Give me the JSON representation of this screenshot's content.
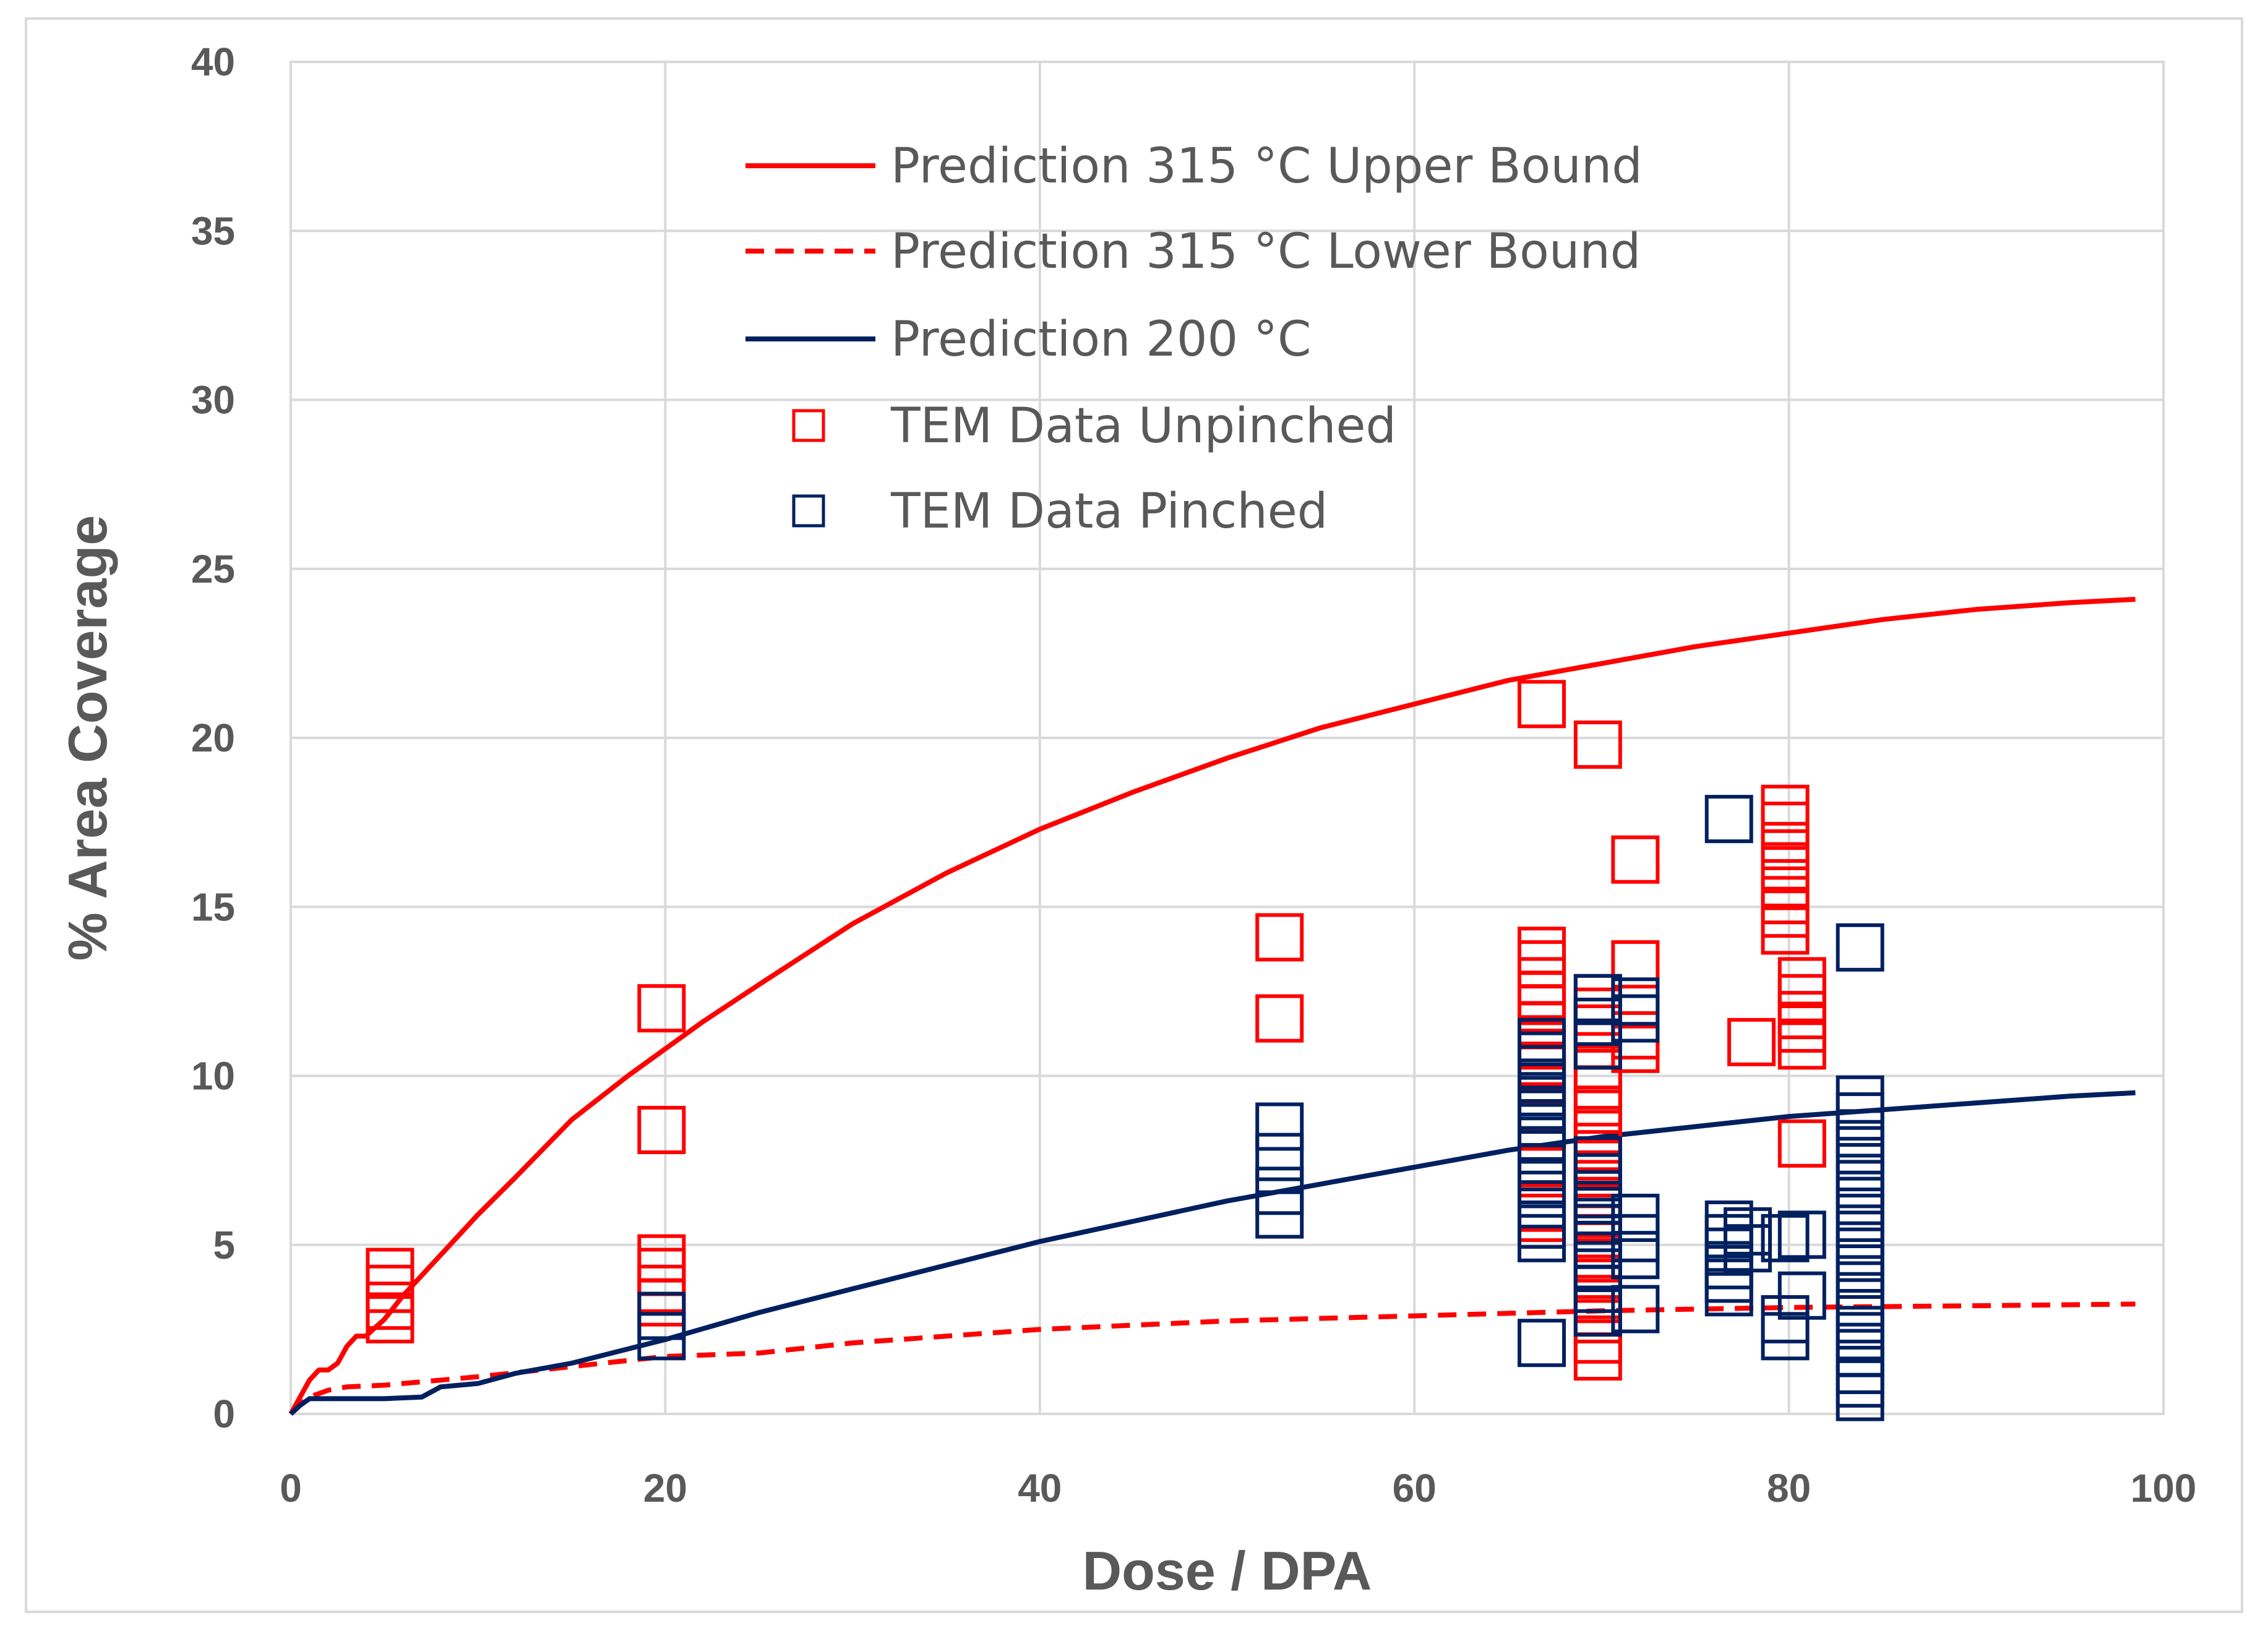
{
  "chart_data": {
    "type": "scatter",
    "title": "",
    "xlabel": "Dose / DPA",
    "ylabel": "% Area Coverage",
    "xlim": [
      0,
      100
    ],
    "ylim": [
      0,
      40
    ],
    "xticks": [
      0,
      20,
      40,
      60,
      80,
      100
    ],
    "yticks": [
      0,
      5,
      10,
      15,
      20,
      25,
      30,
      35,
      40
    ],
    "grid": true,
    "legend_position": "top-center",
    "colors": {
      "red": "#ff0000",
      "navy": "#002060",
      "grid": "#d9d9d9",
      "text": "#595959"
    },
    "series": [
      {
        "name": "Prediction 315 °C Upper Bound",
        "kind": "line",
        "style": "solid",
        "color": "#ff0000",
        "x": [
          0,
          0.5,
          1,
          1.5,
          2,
          2.5,
          3,
          3.5,
          4,
          5,
          6,
          8,
          10,
          12,
          15,
          18,
          20,
          22,
          25,
          30,
          35,
          40,
          45,
          50,
          55,
          60,
          65,
          70,
          75,
          80,
          85,
          90,
          95,
          98.5
        ],
        "y": [
          0,
          0.5,
          1.0,
          1.3,
          1.3,
          1.5,
          2.0,
          2.3,
          2.3,
          2.8,
          3.5,
          4.7,
          5.9,
          7.0,
          8.7,
          10.0,
          10.8,
          11.6,
          12.7,
          14.5,
          16.0,
          17.3,
          18.4,
          19.4,
          20.3,
          21.0,
          21.7,
          22.2,
          22.7,
          23.1,
          23.5,
          23.8,
          24.0,
          24.1
        ]
      },
      {
        "name": "Prediction 315 °C Lower Bound",
        "kind": "line",
        "style": "dashed",
        "color": "#ff0000",
        "x": [
          0,
          0.5,
          1,
          2,
          3,
          5,
          10,
          15,
          20,
          25,
          30,
          35,
          40,
          50,
          60,
          70,
          80,
          90,
          98.5
        ],
        "y": [
          0,
          0.3,
          0.5,
          0.7,
          0.8,
          0.85,
          1.1,
          1.4,
          1.7,
          1.8,
          2.1,
          2.3,
          2.5,
          2.75,
          2.9,
          3.05,
          3.15,
          3.2,
          3.25
        ]
      },
      {
        "name": "Prediction 200 °C",
        "kind": "line",
        "style": "solid",
        "color": "#002060",
        "x": [
          0,
          0.5,
          1,
          2,
          3,
          5,
          7,
          8,
          10,
          12,
          15,
          20,
          25,
          30,
          35,
          40,
          45,
          50,
          55,
          60,
          65,
          70,
          75,
          80,
          85,
          90,
          95,
          98.5
        ],
        "y": [
          0,
          0.25,
          0.45,
          0.45,
          0.45,
          0.45,
          0.5,
          0.8,
          0.9,
          1.2,
          1.5,
          2.2,
          3.0,
          3.7,
          4.4,
          5.1,
          5.7,
          6.3,
          6.8,
          7.3,
          7.8,
          8.2,
          8.5,
          8.8,
          9.0,
          9.2,
          9.4,
          9.5
        ]
      },
      {
        "name": "TEM Data Unpinched",
        "kind": "marker",
        "marker": "square",
        "color": "#ff0000",
        "points": [
          [
            5.3,
            4.2
          ],
          [
            5.3,
            3.7
          ],
          [
            5.3,
            3.2
          ],
          [
            5.3,
            2.8
          ],
          [
            19.8,
            12.0
          ],
          [
            19.8,
            8.4
          ],
          [
            19.8,
            4.6
          ],
          [
            19.8,
            4.2
          ],
          [
            19.8,
            3.7
          ],
          [
            19.8,
            3.3
          ],
          [
            52.8,
            14.1
          ],
          [
            52.8,
            11.7
          ],
          [
            66.8,
            21.0
          ],
          [
            66.8,
            13.7
          ],
          [
            66.8,
            13.3
          ],
          [
            66.8,
            12.8
          ],
          [
            66.8,
            12.4
          ],
          [
            66.8,
            12.0
          ],
          [
            66.8,
            11.5
          ],
          [
            66.8,
            10.9
          ],
          [
            66.8,
            10.3
          ],
          [
            66.8,
            9.8
          ],
          [
            66.8,
            9.1
          ],
          [
            66.8,
            8.5
          ],
          [
            66.8,
            6.1
          ],
          [
            66.8,
            5.8
          ],
          [
            69.8,
            19.8
          ],
          [
            69.8,
            12.3
          ],
          [
            69.8,
            11.9
          ],
          [
            69.8,
            11.4
          ],
          [
            69.8,
            10.9
          ],
          [
            69.8,
            10.2
          ],
          [
            69.8,
            9.6
          ],
          [
            69.8,
            9.0
          ],
          [
            69.8,
            8.4
          ],
          [
            69.8,
            7.9
          ],
          [
            69.8,
            7.4
          ],
          [
            69.8,
            6.8
          ],
          [
            69.8,
            6.3
          ],
          [
            69.8,
            5.8
          ],
          [
            69.8,
            5.2
          ],
          [
            69.8,
            4.6
          ],
          [
            69.8,
            4.0
          ],
          [
            69.8,
            3.4
          ],
          [
            69.8,
            2.8
          ],
          [
            69.8,
            2.2
          ],
          [
            69.8,
            1.7
          ],
          [
            71.8,
            16.4
          ],
          [
            71.8,
            13.3
          ],
          [
            71.8,
            11.2
          ],
          [
            71.8,
            10.8
          ],
          [
            78.0,
            11.0
          ],
          [
            79.8,
            17.9
          ],
          [
            79.8,
            17.4
          ],
          [
            79.8,
            16.8
          ],
          [
            79.8,
            16.2
          ],
          [
            79.8,
            15.7
          ],
          [
            79.8,
            15.2
          ],
          [
            79.8,
            14.8
          ],
          [
            79.8,
            14.3
          ],
          [
            80.7,
            12.8
          ],
          [
            80.7,
            12.3
          ],
          [
            80.7,
            11.8
          ],
          [
            80.7,
            11.4
          ],
          [
            80.7,
            10.9
          ],
          [
            80.7,
            8.0
          ]
        ]
      },
      {
        "name": "TEM Data Pinched",
        "kind": "marker",
        "marker": "square",
        "color": "#002060",
        "points": [
          [
            19.8,
            2.9
          ],
          [
            19.8,
            2.3
          ],
          [
            52.8,
            8.5
          ],
          [
            52.8,
            7.6
          ],
          [
            52.8,
            6.6
          ],
          [
            52.8,
            5.9
          ],
          [
            66.8,
            11.0
          ],
          [
            66.8,
            10.6
          ],
          [
            66.8,
            10.2
          ],
          [
            66.8,
            9.8
          ],
          [
            66.8,
            9.4
          ],
          [
            66.8,
            9.0
          ],
          [
            66.8,
            8.6
          ],
          [
            66.8,
            8.2
          ],
          [
            66.8,
            7.8
          ],
          [
            66.8,
            7.3
          ],
          [
            66.8,
            6.8
          ],
          [
            66.8,
            6.2
          ],
          [
            66.8,
            5.6
          ],
          [
            66.8,
            5.2
          ],
          [
            66.8,
            2.1
          ],
          [
            69.8,
            12.3
          ],
          [
            69.8,
            11.6
          ],
          [
            69.8,
            10.9
          ],
          [
            69.8,
            7.5
          ],
          [
            69.8,
            7.0
          ],
          [
            69.8,
            6.5
          ],
          [
            69.8,
            6.0
          ],
          [
            69.8,
            5.5
          ],
          [
            69.8,
            5.0
          ],
          [
            69.8,
            4.4
          ],
          [
            69.8,
            3.7
          ],
          [
            69.8,
            3.0
          ],
          [
            71.8,
            12.2
          ],
          [
            71.8,
            11.7
          ],
          [
            71.8,
            5.8
          ],
          [
            71.8,
            5.2
          ],
          [
            71.8,
            4.7
          ],
          [
            71.8,
            3.1
          ],
          [
            76.8,
            17.6
          ],
          [
            76.8,
            5.6
          ],
          [
            76.8,
            5.2
          ],
          [
            76.8,
            4.8
          ],
          [
            76.8,
            4.4
          ],
          [
            76.8,
            4.0
          ],
          [
            76.8,
            3.6
          ],
          [
            77.8,
            5.4
          ],
          [
            77.8,
            4.9
          ],
          [
            79.8,
            5.2
          ],
          [
            79.8,
            2.8
          ],
          [
            79.8,
            2.3
          ],
          [
            80.7,
            5.3
          ],
          [
            80.7,
            3.5
          ],
          [
            83.8,
            13.8
          ],
          [
            83.8,
            9.3
          ],
          [
            83.8,
            8.8
          ],
          [
            83.8,
            8.3
          ],
          [
            83.8,
            7.8
          ],
          [
            83.8,
            7.3
          ],
          [
            83.8,
            6.8
          ],
          [
            83.8,
            6.3
          ],
          [
            83.8,
            5.8
          ],
          [
            83.8,
            5.3
          ],
          [
            83.8,
            4.8
          ],
          [
            83.8,
            4.3
          ],
          [
            83.8,
            3.8
          ],
          [
            83.8,
            3.3
          ],
          [
            83.8,
            2.8
          ],
          [
            83.8,
            2.3
          ],
          [
            83.8,
            1.8
          ],
          [
            83.8,
            1.3
          ],
          [
            83.8,
            0.9
          ],
          [
            83.8,
            0.5
          ]
        ]
      }
    ]
  }
}
